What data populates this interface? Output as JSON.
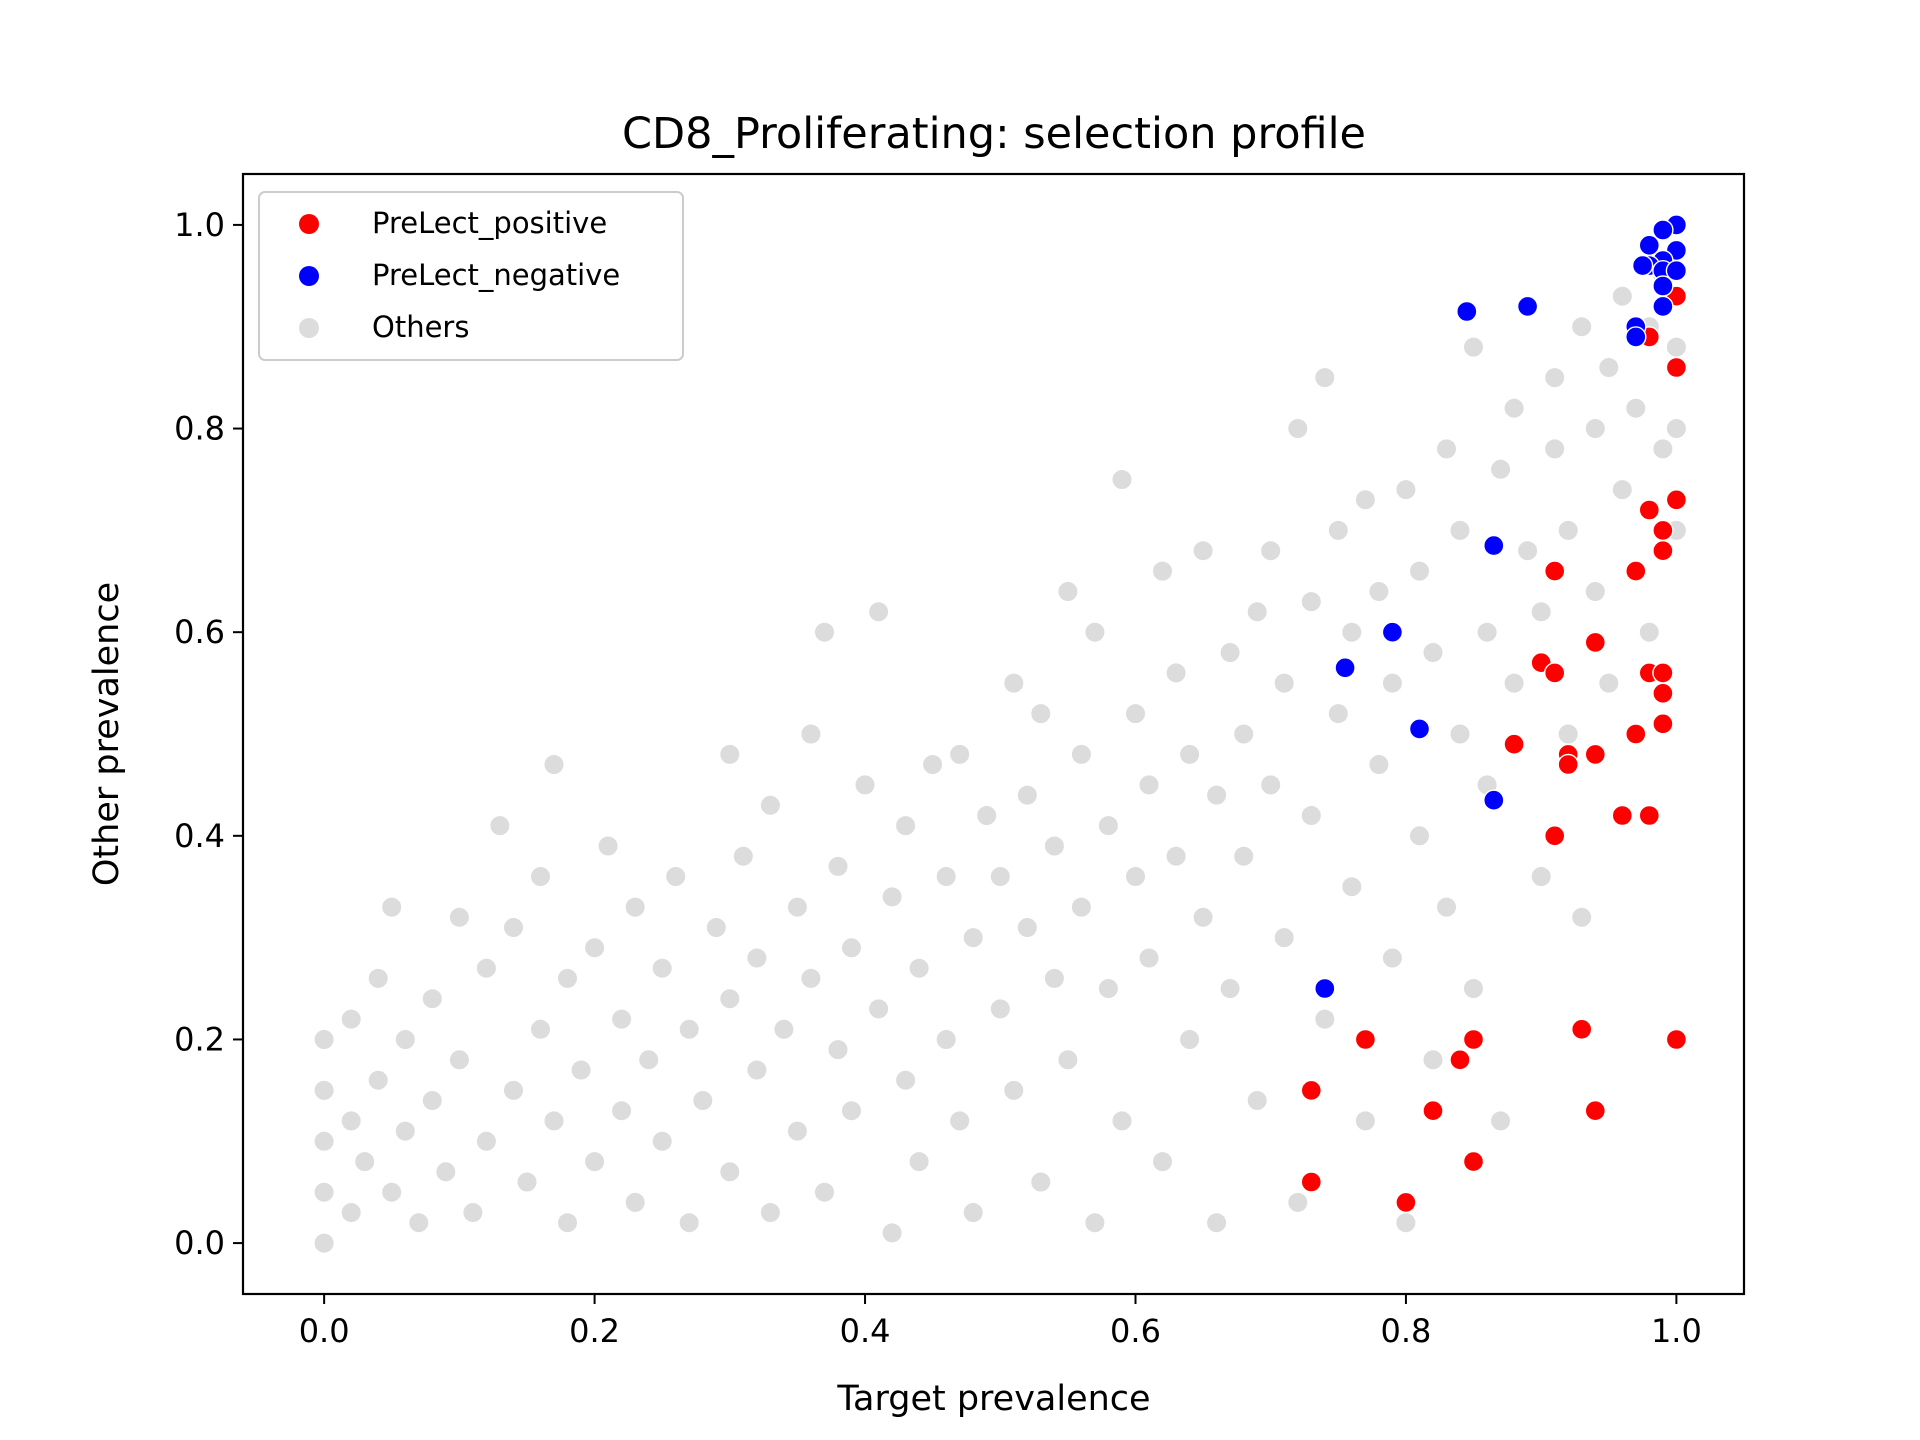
{
  "chart_data": {
    "type": "scatter",
    "title": "CD8_Proliferating: selection profile",
    "xlabel": "Target prevalence",
    "ylabel": "Other prevalence",
    "xlim": [
      -0.06,
      1.05
    ],
    "ylim": [
      -0.05,
      1.05
    ],
    "x_ticks": [
      "0.0",
      "0.2",
      "0.4",
      "0.6",
      "0.8",
      "1.0"
    ],
    "y_ticks": [
      "0.0",
      "0.2",
      "0.4",
      "0.6",
      "0.8",
      "1.0"
    ],
    "x_tick_values": [
      0.0,
      0.2,
      0.4,
      0.6,
      0.8,
      1.0
    ],
    "y_tick_values": [
      0.0,
      0.2,
      0.4,
      0.6,
      0.8,
      1.0
    ],
    "grid": false,
    "legend_position": "upper-left",
    "series": [
      {
        "name": "Others",
        "color": "#bfbfbf",
        "opacity": 0.55,
        "note_on_points": "dense background cloud of several thousand points; representative sample listed",
        "points": [
          [
            0.0,
            0.0
          ],
          [
            0.0,
            0.05
          ],
          [
            0.0,
            0.1
          ],
          [
            0.0,
            0.15
          ],
          [
            0.0,
            0.2
          ],
          [
            0.02,
            0.03
          ],
          [
            0.02,
            0.12
          ],
          [
            0.02,
            0.22
          ],
          [
            0.03,
            0.08
          ],
          [
            0.04,
            0.16
          ],
          [
            0.04,
            0.26
          ],
          [
            0.05,
            0.05
          ],
          [
            0.05,
            0.33
          ],
          [
            0.06,
            0.11
          ],
          [
            0.06,
            0.2
          ],
          [
            0.07,
            0.02
          ],
          [
            0.08,
            0.14
          ],
          [
            0.08,
            0.24
          ],
          [
            0.09,
            0.07
          ],
          [
            0.1,
            0.18
          ],
          [
            0.1,
            0.32
          ],
          [
            0.11,
            0.03
          ],
          [
            0.12,
            0.1
          ],
          [
            0.12,
            0.27
          ],
          [
            0.13,
            0.41
          ],
          [
            0.14,
            0.15
          ],
          [
            0.14,
            0.31
          ],
          [
            0.15,
            0.06
          ],
          [
            0.16,
            0.21
          ],
          [
            0.16,
            0.36
          ],
          [
            0.17,
            0.47
          ],
          [
            0.17,
            0.12
          ],
          [
            0.18,
            0.02
          ],
          [
            0.18,
            0.26
          ],
          [
            0.19,
            0.17
          ],
          [
            0.2,
            0.08
          ],
          [
            0.2,
            0.29
          ],
          [
            0.21,
            0.39
          ],
          [
            0.22,
            0.13
          ],
          [
            0.22,
            0.22
          ],
          [
            0.23,
            0.04
          ],
          [
            0.23,
            0.33
          ],
          [
            0.24,
            0.18
          ],
          [
            0.25,
            0.1
          ],
          [
            0.25,
            0.27
          ],
          [
            0.26,
            0.36
          ],
          [
            0.27,
            0.02
          ],
          [
            0.27,
            0.21
          ],
          [
            0.28,
            0.14
          ],
          [
            0.29,
            0.31
          ],
          [
            0.3,
            0.07
          ],
          [
            0.3,
            0.24
          ],
          [
            0.3,
            0.48
          ],
          [
            0.31,
            0.38
          ],
          [
            0.32,
            0.17
          ],
          [
            0.32,
            0.28
          ],
          [
            0.33,
            0.03
          ],
          [
            0.33,
            0.43
          ],
          [
            0.34,
            0.21
          ],
          [
            0.35,
            0.11
          ],
          [
            0.35,
            0.33
          ],
          [
            0.36,
            0.5
          ],
          [
            0.36,
            0.26
          ],
          [
            0.37,
            0.6
          ],
          [
            0.37,
            0.05
          ],
          [
            0.38,
            0.19
          ],
          [
            0.38,
            0.37
          ],
          [
            0.39,
            0.13
          ],
          [
            0.39,
            0.29
          ],
          [
            0.4,
            0.45
          ],
          [
            0.41,
            0.62
          ],
          [
            0.41,
            0.23
          ],
          [
            0.42,
            0.01
          ],
          [
            0.42,
            0.34
          ],
          [
            0.43,
            0.16
          ],
          [
            0.43,
            0.41
          ],
          [
            0.44,
            0.08
          ],
          [
            0.44,
            0.27
          ],
          [
            0.45,
            0.47
          ],
          [
            0.46,
            0.2
          ],
          [
            0.46,
            0.36
          ],
          [
            0.47,
            0.12
          ],
          [
            0.47,
            0.48
          ],
          [
            0.48,
            0.3
          ],
          [
            0.48,
            0.03
          ],
          [
            0.49,
            0.42
          ],
          [
            0.5,
            0.23
          ],
          [
            0.5,
            0.36
          ],
          [
            0.51,
            0.55
          ],
          [
            0.51,
            0.15
          ],
          [
            0.52,
            0.31
          ],
          [
            0.52,
            0.44
          ],
          [
            0.53,
            0.06
          ],
          [
            0.53,
            0.52
          ],
          [
            0.54,
            0.26
          ],
          [
            0.54,
            0.39
          ],
          [
            0.55,
            0.64
          ],
          [
            0.55,
            0.18
          ],
          [
            0.56,
            0.33
          ],
          [
            0.56,
            0.48
          ],
          [
            0.57,
            0.02
          ],
          [
            0.57,
            0.6
          ],
          [
            0.58,
            0.25
          ],
          [
            0.58,
            0.41
          ],
          [
            0.59,
            0.75
          ],
          [
            0.59,
            0.12
          ],
          [
            0.6,
            0.36
          ],
          [
            0.6,
            0.52
          ],
          [
            0.61,
            0.28
          ],
          [
            0.61,
            0.45
          ],
          [
            0.62,
            0.66
          ],
          [
            0.62,
            0.08
          ],
          [
            0.63,
            0.38
          ],
          [
            0.63,
            0.56
          ],
          [
            0.64,
            0.2
          ],
          [
            0.64,
            0.48
          ],
          [
            0.65,
            0.68
          ],
          [
            0.65,
            0.32
          ],
          [
            0.66,
            0.44
          ],
          [
            0.66,
            0.02
          ],
          [
            0.67,
            0.58
          ],
          [
            0.67,
            0.25
          ],
          [
            0.68,
            0.5
          ],
          [
            0.68,
            0.38
          ],
          [
            0.69,
            0.62
          ],
          [
            0.69,
            0.14
          ],
          [
            0.7,
            0.45
          ],
          [
            0.7,
            0.68
          ],
          [
            0.71,
            0.3
          ],
          [
            0.71,
            0.55
          ],
          [
            0.72,
            0.8
          ],
          [
            0.72,
            0.04
          ],
          [
            0.73,
            0.42
          ],
          [
            0.73,
            0.63
          ],
          [
            0.74,
            0.22
          ],
          [
            0.74,
            0.85
          ],
          [
            0.75,
            0.52
          ],
          [
            0.75,
            0.7
          ],
          [
            0.76,
            0.35
          ],
          [
            0.76,
            0.6
          ],
          [
            0.77,
            0.12
          ],
          [
            0.77,
            0.73
          ],
          [
            0.78,
            0.47
          ],
          [
            0.78,
            0.64
          ],
          [
            0.79,
            0.28
          ],
          [
            0.79,
            0.55
          ],
          [
            0.8,
            0.74
          ],
          [
            0.8,
            0.02
          ],
          [
            0.81,
            0.4
          ],
          [
            0.81,
            0.66
          ],
          [
            0.82,
            0.18
          ],
          [
            0.82,
            0.58
          ],
          [
            0.83,
            0.78
          ],
          [
            0.83,
            0.33
          ],
          [
            0.84,
            0.5
          ],
          [
            0.84,
            0.7
          ],
          [
            0.85,
            0.88
          ],
          [
            0.85,
            0.25
          ],
          [
            0.86,
            0.6
          ],
          [
            0.86,
            0.45
          ],
          [
            0.87,
            0.76
          ],
          [
            0.87,
            0.12
          ],
          [
            0.88,
            0.82
          ],
          [
            0.88,
            0.55
          ],
          [
            0.89,
            0.68
          ],
          [
            0.89,
            0.92
          ],
          [
            0.9,
            0.36
          ],
          [
            0.9,
            0.62
          ],
          [
            0.91,
            0.78
          ],
          [
            0.91,
            0.85
          ],
          [
            0.92,
            0.5
          ],
          [
            0.92,
            0.7
          ],
          [
            0.93,
            0.9
          ],
          [
            0.93,
            0.32
          ],
          [
            0.94,
            0.64
          ],
          [
            0.94,
            0.8
          ],
          [
            0.95,
            0.86
          ],
          [
            0.95,
            0.55
          ],
          [
            0.96,
            0.74
          ],
          [
            0.96,
            0.93
          ],
          [
            0.97,
            0.66
          ],
          [
            0.97,
            0.82
          ],
          [
            0.98,
            0.9
          ],
          [
            0.98,
            0.6
          ],
          [
            0.99,
            0.78
          ],
          [
            0.99,
            0.95
          ],
          [
            1.0,
            0.88
          ],
          [
            1.0,
            0.8
          ],
          [
            1.0,
            0.93
          ],
          [
            1.0,
            0.7
          ]
        ]
      },
      {
        "name": "PreLect_positive",
        "color": "#ff0000",
        "opacity": 1,
        "points": [
          [
            1.0,
            0.93
          ],
          [
            0.98,
            0.89
          ],
          [
            1.0,
            0.86
          ],
          [
            1.0,
            0.73
          ],
          [
            0.98,
            0.72
          ],
          [
            0.99,
            0.7
          ],
          [
            0.99,
            0.68
          ],
          [
            0.97,
            0.66
          ],
          [
            0.91,
            0.66
          ],
          [
            0.94,
            0.59
          ],
          [
            0.9,
            0.57
          ],
          [
            0.91,
            0.56
          ],
          [
            0.98,
            0.56
          ],
          [
            0.99,
            0.56
          ],
          [
            0.99,
            0.54
          ],
          [
            0.99,
            0.51
          ],
          [
            0.97,
            0.5
          ],
          [
            0.88,
            0.49
          ],
          [
            0.92,
            0.48
          ],
          [
            0.94,
            0.48
          ],
          [
            0.92,
            0.47
          ],
          [
            0.96,
            0.42
          ],
          [
            0.98,
            0.42
          ],
          [
            0.91,
            0.4
          ],
          [
            1.0,
            0.2
          ],
          [
            0.93,
            0.21
          ],
          [
            0.77,
            0.2
          ],
          [
            0.85,
            0.2
          ],
          [
            0.84,
            0.18
          ],
          [
            0.73,
            0.15
          ],
          [
            0.94,
            0.13
          ],
          [
            0.82,
            0.13
          ],
          [
            0.85,
            0.08
          ],
          [
            0.73,
            0.06
          ],
          [
            0.8,
            0.04
          ]
        ]
      },
      {
        "name": "PreLect_negative",
        "color": "#0000ff",
        "opacity": 1,
        "points": [
          [
            1.0,
            1.0
          ],
          [
            0.99,
            0.995
          ],
          [
            0.98,
            0.98
          ],
          [
            1.0,
            0.975
          ],
          [
            0.99,
            0.965
          ],
          [
            0.98,
            0.96
          ],
          [
            0.975,
            0.96
          ],
          [
            0.99,
            0.955
          ],
          [
            1.0,
            0.955
          ],
          [
            0.99,
            0.94
          ],
          [
            0.99,
            0.92
          ],
          [
            0.845,
            0.915
          ],
          [
            0.89,
            0.92
          ],
          [
            0.97,
            0.9
          ],
          [
            0.97,
            0.89
          ],
          [
            0.865,
            0.685
          ],
          [
            0.79,
            0.6
          ],
          [
            0.755,
            0.565
          ],
          [
            0.81,
            0.505
          ],
          [
            0.865,
            0.435
          ],
          [
            0.74,
            0.25
          ]
        ]
      }
    ]
  }
}
